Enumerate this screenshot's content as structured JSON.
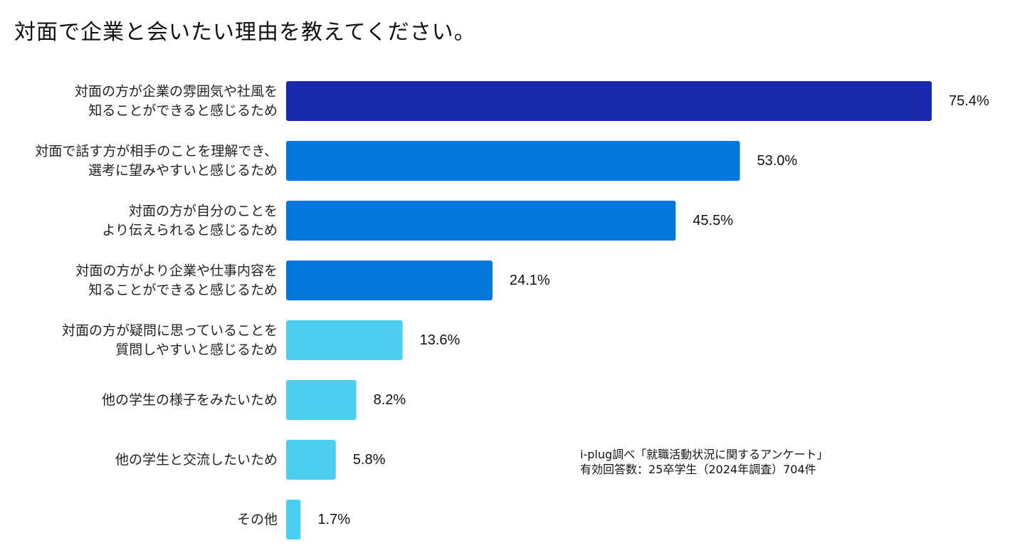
{
  "chart_data": {
    "type": "bar",
    "orientation": "horizontal",
    "title": "対面で企業と会いたい理由を教えてください。",
    "unit": "%",
    "xlim": [
      0,
      80
    ],
    "grid": false,
    "categories": [
      [
        "対面の方が企業の雰囲気や社風を",
        "知ることができると感じるため"
      ],
      [
        "対面で話す方が相手のことを理解でき、",
        "選考に望みやすいと感じるため"
      ],
      [
        "対面の方が自分のことを",
        "より伝えられると感じるため"
      ],
      [
        "対面の方がより企業や仕事内容を",
        "知ることができると感じるため"
      ],
      [
        "対面の方が疑問に思っていることを",
        "質問しやすいと感じるため"
      ],
      [
        "他の学生の様子をみたいため"
      ],
      [
        "他の学生と交流したいため"
      ],
      [
        "その他"
      ]
    ],
    "values": [
      75.4,
      53.0,
      45.5,
      24.1,
      13.6,
      8.2,
      5.8,
      1.7
    ],
    "value_labels": [
      "75.4%",
      "53.0%",
      "45.5%",
      "24.1%",
      "13.6%",
      "8.2%",
      "5.8%",
      "1.7%"
    ],
    "colors": [
      "#1a2aad",
      "#0277d9",
      "#0277d9",
      "#0277d9",
      "#4ccfee",
      "#4ccfee",
      "#4ccfee",
      "#4ccfee"
    ]
  },
  "source_note": {
    "line1": "i-plug調べ「就職活動状況に関するアンケート」",
    "line2": "有効回答数：25卒学生（2024年調査）704件"
  }
}
